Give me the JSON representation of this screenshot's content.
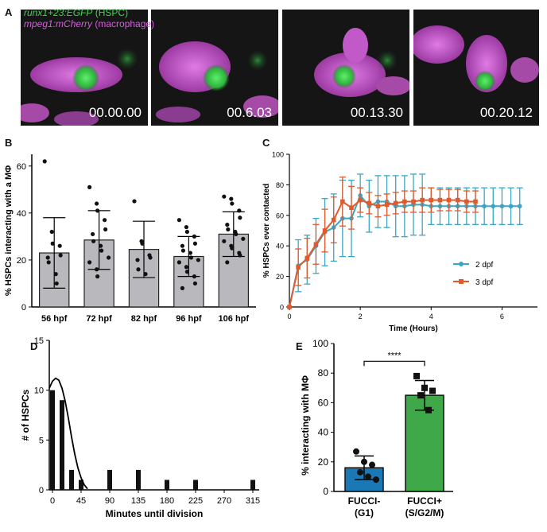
{
  "panel_a": {
    "letter": "A",
    "legend_line1_gene": "runx1+23:EGFP",
    "legend_line1_tag": "(HSPC)",
    "legend_line2_gene": "mpeg1:mCherry",
    "legend_line2_tag": "(macrophage)",
    "timestamps": [
      "00.00.00",
      "00.6.03",
      "00.13.30",
      "00.20.12"
    ],
    "colors": {
      "hspc": "#3fd44f",
      "macrophage": "#d060d8",
      "background": "#151515"
    }
  },
  "chart_data": [
    {
      "panel": "B",
      "type": "bar",
      "ylabel": "% HSPCs interacting with a MΦ",
      "xlabel": "",
      "categories": [
        "56 hpf",
        "72 hpf",
        "82 hpf",
        "96 hpf",
        "106 hpf"
      ],
      "values": [
        23,
        28.5,
        24.5,
        21.5,
        31
      ],
      "error": [
        15,
        12.5,
        12,
        8.5,
        9.5
      ],
      "points": [
        [
          62,
          32,
          27,
          26,
          22,
          21,
          19,
          14,
          10
        ],
        [
          51,
          44,
          41,
          37,
          33,
          31,
          28,
          26,
          24,
          21,
          19,
          16,
          13
        ],
        [
          45,
          28,
          27,
          22,
          21,
          20,
          16,
          14
        ],
        [
          37,
          34,
          32,
          30,
          27,
          26,
          24,
          23,
          21,
          20,
          19,
          17,
          15,
          13,
          10,
          8
        ],
        [
          47,
          46,
          44,
          41,
          38,
          35,
          33,
          32,
          31,
          29,
          28,
          26,
          25,
          23,
          22,
          19
        ]
      ],
      "ylim": [
        0,
        65
      ],
      "yticks": [
        0,
        20,
        40,
        60
      ],
      "bar_color": "#b9b9bd"
    },
    {
      "panel": "C",
      "type": "line",
      "ylabel": "% HSPCs ever contacted",
      "xlabel": "Time (Hours)",
      "xlim": [
        0,
        7
      ],
      "ylim": [
        0,
        100
      ],
      "xticks": [
        0,
        2,
        4,
        6
      ],
      "yticks": [
        0,
        20,
        40,
        60,
        80,
        100
      ],
      "legend_position": "lower-right",
      "series": [
        {
          "name": "2 dpf",
          "color": "#3aa6c4",
          "x": [
            0,
            0.25,
            0.5,
            0.75,
            1.0,
            1.25,
            1.5,
            1.75,
            2.0,
            2.25,
            2.5,
            2.75,
            3.0,
            3.25,
            3.5,
            3.75,
            4.0,
            4.25,
            4.5,
            4.75,
            5.0,
            5.25,
            5.5,
            5.75,
            6.0,
            6.25,
            6.5
          ],
          "y": [
            0,
            27,
            31,
            40,
            49,
            52,
            58,
            58,
            73,
            66,
            69,
            69,
            66,
            66,
            67,
            67,
            66,
            66,
            66,
            66,
            66,
            66,
            66,
            66,
            66,
            66,
            66
          ],
          "err": [
            0,
            17,
            16,
            18,
            22,
            22,
            25,
            25,
            14,
            17,
            17,
            17,
            20,
            20,
            20,
            20,
            12,
            12,
            12,
            12,
            12,
            12,
            12,
            12,
            12,
            12,
            12
          ]
        },
        {
          "name": "3 dpf",
          "color": "#e05a2b",
          "x": [
            0,
            0.25,
            0.5,
            0.75,
            1.0,
            1.25,
            1.5,
            1.75,
            2.0,
            2.25,
            2.5,
            2.75,
            3.0,
            3.25,
            3.5,
            3.75,
            4.0,
            4.25,
            4.5,
            4.75,
            5.0,
            5.25
          ],
          "y": [
            0,
            26,
            32,
            41,
            50,
            57,
            69,
            65,
            70,
            68,
            66,
            67,
            68,
            69,
            69,
            70,
            70,
            70,
            70,
            70,
            69,
            69
          ],
          "err": [
            0,
            12,
            13,
            13,
            14,
            15,
            16,
            14,
            8,
            7,
            7,
            7,
            7,
            7,
            7,
            8,
            8,
            7,
            7,
            7,
            7,
            7
          ]
        }
      ]
    },
    {
      "panel": "D",
      "type": "bar",
      "ylabel": "# of HSPCs",
      "xlabel": "Minutes until division",
      "categories": [
        0,
        15,
        30,
        45,
        90,
        135,
        180,
        225,
        270,
        315
      ],
      "values": [
        10,
        9,
        2,
        1,
        2,
        2,
        1,
        1,
        0,
        1
      ],
      "xlim": [
        -5,
        325
      ],
      "ylim": [
        0,
        15
      ],
      "xticks": [
        0,
        45,
        90,
        135,
        180,
        225,
        270,
        315
      ],
      "yticks": [
        0,
        5,
        10,
        15
      ],
      "fit_curve": "gaussian",
      "fit_curve_points": {
        "x": [
          -5,
          0,
          5,
          10,
          15,
          20,
          25,
          30,
          35,
          40,
          45,
          50,
          55
        ],
        "y": [
          10.2,
          10.9,
          11.2,
          11.0,
          10.2,
          8.9,
          7.2,
          5.3,
          3.6,
          2.2,
          1.2,
          0.5,
          0.1
        ]
      },
      "bar_color": "#111111"
    },
    {
      "panel": "E",
      "type": "bar",
      "ylabel": "% interacting with MΦ",
      "xlabel": "",
      "categories": [
        "FUCCI-\n(G1)",
        "FUCCI+\n(S/G2/M)"
      ],
      "values": [
        16,
        65
      ],
      "error": [
        8,
        10
      ],
      "points": [
        [
          27,
          20,
          18,
          13,
          10,
          8
        ],
        [
          78,
          70,
          68,
          65,
          55
        ]
      ],
      "bar_colors": [
        "#1a78b4",
        "#3fa94a"
      ],
      "ylim": [
        0,
        100
      ],
      "yticks": [
        0,
        20,
        40,
        60,
        80,
        100
      ],
      "significance": "****"
    }
  ],
  "letters": {
    "b": "B",
    "c": "C",
    "d": "D",
    "e": "E"
  }
}
